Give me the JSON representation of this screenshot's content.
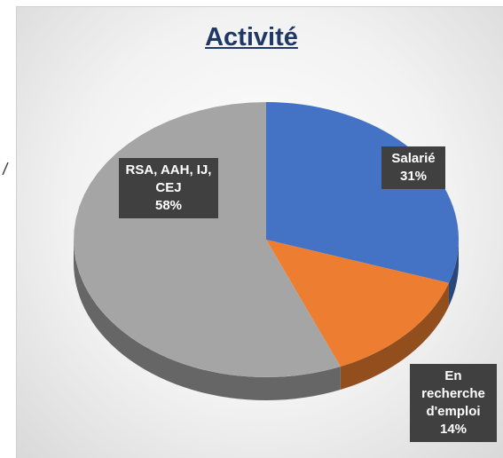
{
  "chart_data": {
    "type": "pie",
    "title": "Activité",
    "categories": [
      "Salarié",
      "En recherche d'emploi",
      "RSA, AAH, IJ, CEJ"
    ],
    "values": [
      31,
      14,
      58
    ],
    "value_labels": [
      "31%",
      "14%",
      "58%"
    ],
    "colors": [
      "#4472c4",
      "#ed7d31",
      "#a5a5a5"
    ]
  }
}
